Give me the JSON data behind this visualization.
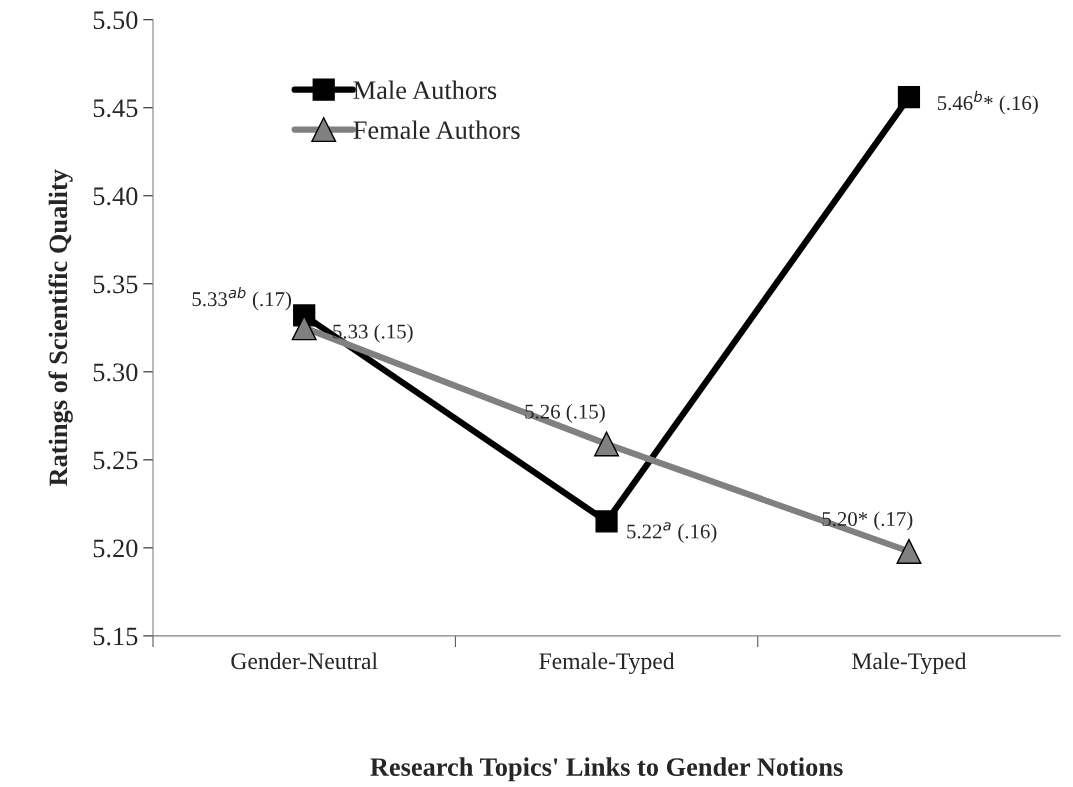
{
  "chart_data": {
    "type": "line",
    "xlabel": "Research Topics' Links to Gender Notions",
    "ylabel": "Ratings of Scientific Quality",
    "categories": [
      "Gender-Neutral",
      "Female-Typed",
      "Male-Typed"
    ],
    "series": [
      {
        "name": "Male Authors",
        "color": "#000000",
        "marker": "square",
        "values": [
          5.332,
          5.215,
          5.456
        ],
        "value_labels": [
          "5.33$^{ab}$ (.17)",
          "5.22$^{a}$ (.16)",
          "5.46$^{b}$* (.16)"
        ]
      },
      {
        "name": "Female Authors",
        "color": "#808080",
        "marker": "triangle",
        "values": [
          5.325,
          5.259,
          5.198
        ],
        "value_labels": [
          "5.33 (.15)",
          "5.26 (.15)",
          "5.20* (.17)"
        ]
      }
    ],
    "ylim": [
      5.15,
      5.5
    ],
    "yticks": [
      {
        "value": 5.15,
        "label": "5.15"
      },
      {
        "value": 5.2,
        "label": "5.20"
      },
      {
        "value": 5.25,
        "label": "5.25"
      },
      {
        "value": 5.3,
        "label": "5.30"
      },
      {
        "value": 5.35,
        "label": "5.35"
      },
      {
        "value": 5.4,
        "label": "5.40"
      },
      {
        "value": 5.45,
        "label": "5.45"
      },
      {
        "value": 5.5,
        "label": "5.50"
      }
    ],
    "grid": false,
    "legend": "top left",
    "line_style": "solid"
  }
}
